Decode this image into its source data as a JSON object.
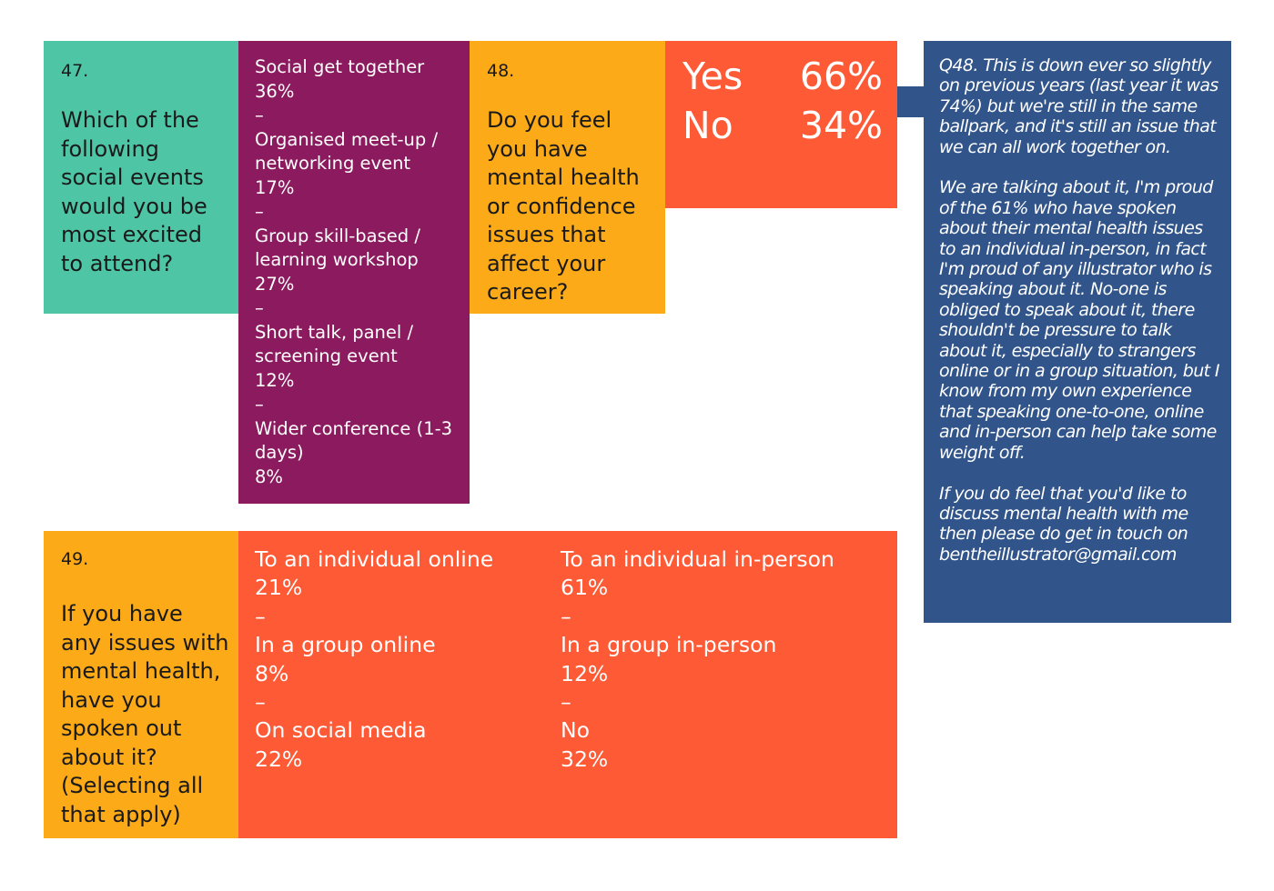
{
  "q47": {
    "number": "47.",
    "question": "Which of the following social events would you be most excited to attend?",
    "options": [
      {
        "label": "Social get together",
        "pct": "36%"
      },
      {
        "label": "Organised meet-up / networking event",
        "pct": "17%"
      },
      {
        "label": "Group skill-based / learning workshop",
        "pct": "27%"
      },
      {
        "label": "Short talk, panel / screening event",
        "pct": "12%"
      },
      {
        "label": "Wider conference (1-3 days)",
        "pct": "8%"
      }
    ],
    "separator": "–"
  },
  "q48": {
    "number": "48.",
    "question": "Do you feel you have mental health or confidence issues that affect your career?",
    "results": [
      {
        "label": "Yes",
        "value": "66%"
      },
      {
        "label": "No",
        "value": "34%"
      }
    ]
  },
  "comment": {
    "paragraphs": [
      "Q48. This is down ever so slightly on previous years (last year it was 74%) but we're still in the same ballpark, and it's still an issue that we can all work together on.",
      "We are talking about it, I'm proud of the 61% who have spoken about their mental health issues to an individual in-person, in fact I'm proud of any illustrator who is speaking about it.  No-one is obliged to speak about it, there shouldn't be pressure to talk about it, especially to strangers online or in a group situation, but I know from my own experience that speaking one-to-one, online and in-person can help take some weight off.",
      "If you do feel that you'd like to discuss mental health with me then please do get in touch on bentheillustrator@gmail.com"
    ]
  },
  "q49": {
    "number": "49.",
    "question": "If you have any issues with mental health, have you spoken out about it? (Selecting all that apply)",
    "left_options": [
      {
        "label": "To an individual online",
        "pct": "21%"
      },
      {
        "label": "In a group online",
        "pct": "8%"
      },
      {
        "label": "On social media",
        "pct": "22%"
      }
    ],
    "right_options": [
      {
        "label": "To an individual in-person",
        "pct": "61%"
      },
      {
        "label": "In a group in-person",
        "pct": "12%"
      },
      {
        "label": "No",
        "pct": "32%"
      }
    ],
    "separator": "–"
  }
}
